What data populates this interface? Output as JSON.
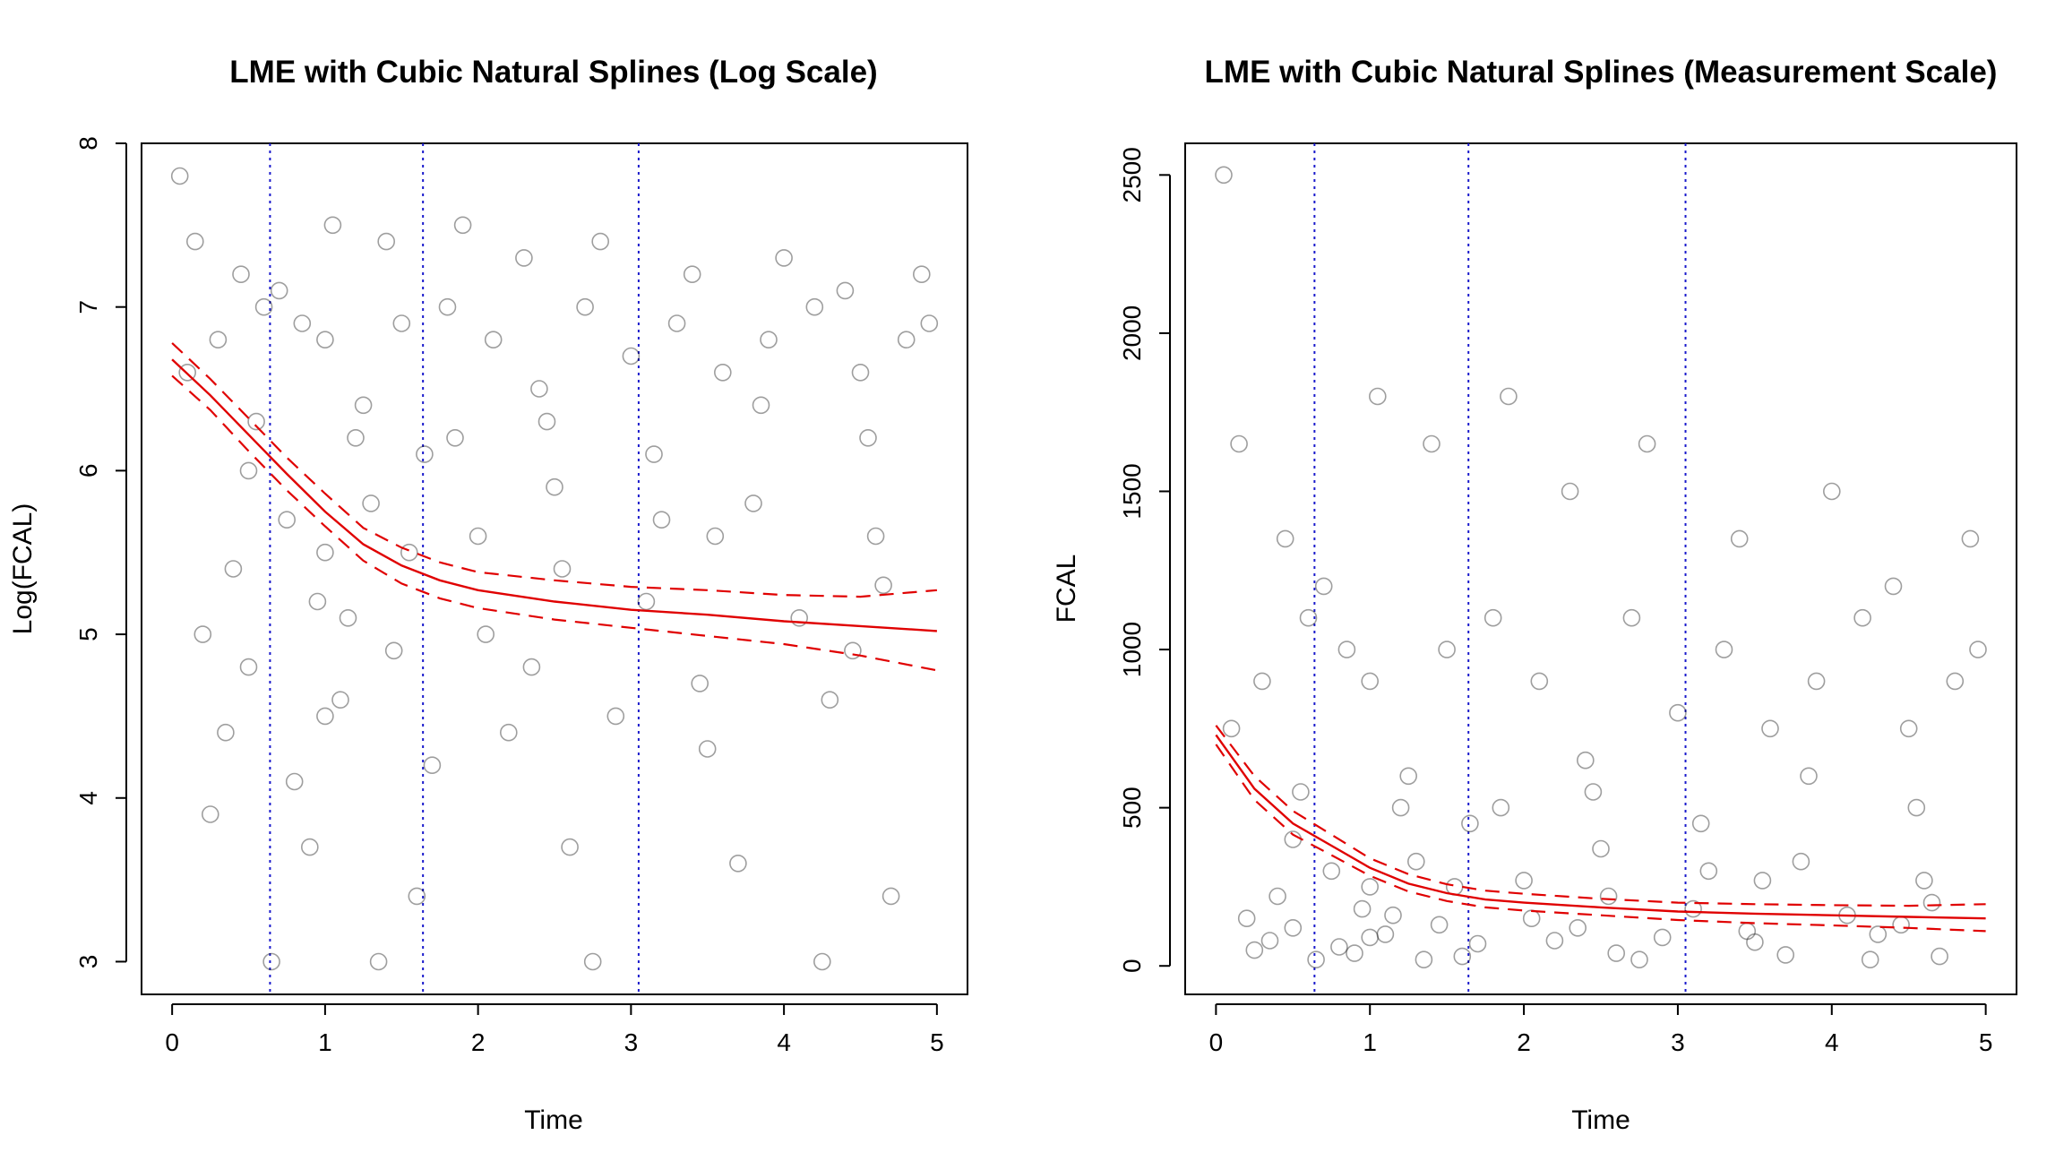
{
  "chart_data": [
    {
      "type": "scatter",
      "title": "LME with Cubic Natural Splines (Log Scale)",
      "xlabel": "Time",
      "ylabel": "Log(FCAL)",
      "xlim": [
        -0.2,
        5.2
      ],
      "ylim": [
        2.8,
        8.0
      ],
      "xticks": [
        "0",
        "1",
        "2",
        "3",
        "4",
        "5"
      ],
      "yticks": [
        "3",
        "4",
        "5",
        "6",
        "7",
        "8"
      ],
      "grid": false,
      "legend": "none",
      "knots": [
        0.64,
        1.64,
        3.05
      ],
      "colors": {
        "points": "#000000",
        "fit": "#e00000",
        "knots": "#1a1acc"
      },
      "fit": {
        "x": [
          0,
          0.25,
          0.5,
          0.75,
          1.0,
          1.25,
          1.5,
          1.75,
          2.0,
          2.5,
          3.0,
          3.5,
          4.0,
          4.5,
          5.0
        ],
        "y": [
          6.68,
          6.46,
          6.22,
          5.98,
          5.75,
          5.55,
          5.42,
          5.33,
          5.27,
          5.2,
          5.15,
          5.12,
          5.08,
          5.05,
          5.02
        ],
        "lower": [
          6.58,
          6.37,
          6.12,
          5.88,
          5.66,
          5.45,
          5.31,
          5.22,
          5.16,
          5.09,
          5.04,
          4.99,
          4.94,
          4.87,
          4.78
        ],
        "upper": [
          6.78,
          6.56,
          6.32,
          6.08,
          5.86,
          5.65,
          5.53,
          5.44,
          5.38,
          5.33,
          5.29,
          5.27,
          5.24,
          5.23,
          5.27
        ]
      },
      "points": {
        "x": [
          0.1,
          0.3,
          0.6,
          0.85,
          1.0,
          1.0,
          1.0,
          1.2,
          1.5,
          1.8,
          2.1,
          2.4,
          2.7,
          3.0,
          3.3,
          3.6,
          3.9,
          4.2,
          4.5,
          4.8,
          0.2,
          0.5,
          0.95,
          1.3,
          1.65,
          2.0,
          2.5,
          3.2,
          3.8,
          4.6,
          0.15,
          0.45,
          0.7,
          1.05,
          1.4,
          1.9,
          2.3,
          2.8,
          3.4,
          4.0,
          4.4,
          4.9,
          0.35,
          0.8,
          1.1,
          1.7,
          2.2,
          2.9,
          3.5,
          4.3,
          0.25,
          0.9,
          1.6,
          2.6,
          3.7,
          4.7,
          0.4,
          1.15,
          2.05,
          3.1,
          4.1,
          0.55,
          1.25,
          1.85,
          2.45,
          3.15,
          3.85,
          4.55,
          0.65,
          1.35,
          2.75,
          4.25,
          0.05,
          0.5,
          1.45,
          2.35,
          3.45,
          4.45,
          0.75,
          1.55,
          2.55,
          3.55,
          4.65,
          4.95
        ],
        "y": [
          6.6,
          6.8,
          7.0,
          6.9,
          6.8,
          5.5,
          4.5,
          6.2,
          6.9,
          7.0,
          6.8,
          6.5,
          7.0,
          6.7,
          6.9,
          6.6,
          6.8,
          7.0,
          6.6,
          6.8,
          5.0,
          4.8,
          5.2,
          5.8,
          6.1,
          5.6,
          5.9,
          5.7,
          5.8,
          5.6,
          7.4,
          7.2,
          7.1,
          7.5,
          7.4,
          7.5,
          7.3,
          7.4,
          7.2,
          7.3,
          7.1,
          7.2,
          4.4,
          4.1,
          4.6,
          4.2,
          4.4,
          4.5,
          4.3,
          4.6,
          3.9,
          3.7,
          3.4,
          3.7,
          3.6,
          3.4,
          5.4,
          5.1,
          5.0,
          5.2,
          5.1,
          6.3,
          6.4,
          6.2,
          6.3,
          6.1,
          6.4,
          6.2,
          3.0,
          3.0,
          3.0,
          3.0,
          7.8,
          6.0,
          4.9,
          4.8,
          4.7,
          4.9,
          5.7,
          5.5,
          5.4,
          5.6,
          5.3,
          6.9
        ]
      }
    },
    {
      "type": "scatter",
      "title": "LME with Cubic Natural Splines (Measurement Scale)",
      "xlabel": "Time",
      "ylabel": "FCAL",
      "xlim": [
        -0.2,
        5.2
      ],
      "ylim": [
        -90,
        2600
      ],
      "xticks": [
        "0",
        "1",
        "2",
        "3",
        "4",
        "5"
      ],
      "yticks": [
        "0",
        "500",
        "1000",
        "1500",
        "2000",
        "2500"
      ],
      "grid": false,
      "legend": "none",
      "knots": [
        0.64,
        1.64,
        3.05
      ],
      "colors": {
        "points": "#000000",
        "fit": "#e00000",
        "knots": "#1a1acc"
      },
      "fit": {
        "x": [
          0,
          0.25,
          0.5,
          0.75,
          1.0,
          1.25,
          1.5,
          1.75,
          2.0,
          2.5,
          3.0,
          3.5,
          4.0,
          4.5,
          5.0
        ],
        "y": [
          730,
          560,
          450,
          380,
          310,
          260,
          230,
          210,
          200,
          185,
          172,
          165,
          160,
          155,
          150
        ],
        "lower": [
          700,
          525,
          415,
          350,
          285,
          235,
          205,
          185,
          175,
          160,
          145,
          135,
          128,
          120,
          110
        ],
        "upper": [
          760,
          600,
          490,
          415,
          340,
          290,
          258,
          238,
          228,
          212,
          200,
          195,
          192,
          190,
          195
        ]
      },
      "points": {
        "x": [
          0.1,
          0.3,
          0.6,
          0.85,
          1.0,
          1.0,
          1.0,
          1.2,
          1.5,
          1.8,
          2.1,
          2.4,
          2.7,
          3.0,
          3.3,
          3.6,
          3.9,
          4.2,
          4.5,
          4.8,
          0.2,
          0.5,
          0.95,
          1.3,
          1.65,
          2.0,
          2.5,
          3.2,
          3.8,
          4.6,
          0.15,
          0.45,
          0.7,
          1.05,
          1.4,
          1.9,
          2.3,
          2.8,
          3.4,
          4.0,
          4.4,
          4.9,
          0.35,
          0.8,
          1.1,
          1.7,
          2.2,
          2.9,
          3.5,
          4.3,
          0.25,
          0.9,
          1.6,
          2.6,
          3.7,
          4.7,
          0.4,
          1.15,
          2.05,
          3.1,
          4.1,
          0.55,
          1.25,
          1.85,
          2.45,
          3.15,
          3.85,
          4.55,
          0.65,
          1.35,
          2.75,
          4.25,
          0.05,
          0.5,
          1.45,
          2.35,
          3.45,
          4.45,
          0.75,
          1.55,
          2.55,
          3.55,
          4.65,
          4.95
        ],
        "y": [
          750,
          900,
          1100,
          1000,
          900,
          250,
          90,
          500,
          1000,
          1100,
          900,
          650,
          1100,
          800,
          1000,
          750,
          900,
          1100,
          750,
          900,
          150,
          120,
          180,
          330,
          450,
          270,
          370,
          300,
          330,
          270,
          1650,
          1350,
          1200,
          1800,
          1650,
          1800,
          1500,
          1650,
          1350,
          1500,
          1200,
          1350,
          80,
          60,
          100,
          70,
          80,
          90,
          75,
          100,
          50,
          40,
          30,
          40,
          35,
          30,
          220,
          160,
          150,
          180,
          160,
          550,
          600,
          500,
          550,
          450,
          600,
          500,
          20,
          20,
          20,
          20,
          2500,
          400,
          130,
          120,
          110,
          130,
          300,
          250,
          220,
          270,
          200,
          1000
        ]
      }
    }
  ]
}
